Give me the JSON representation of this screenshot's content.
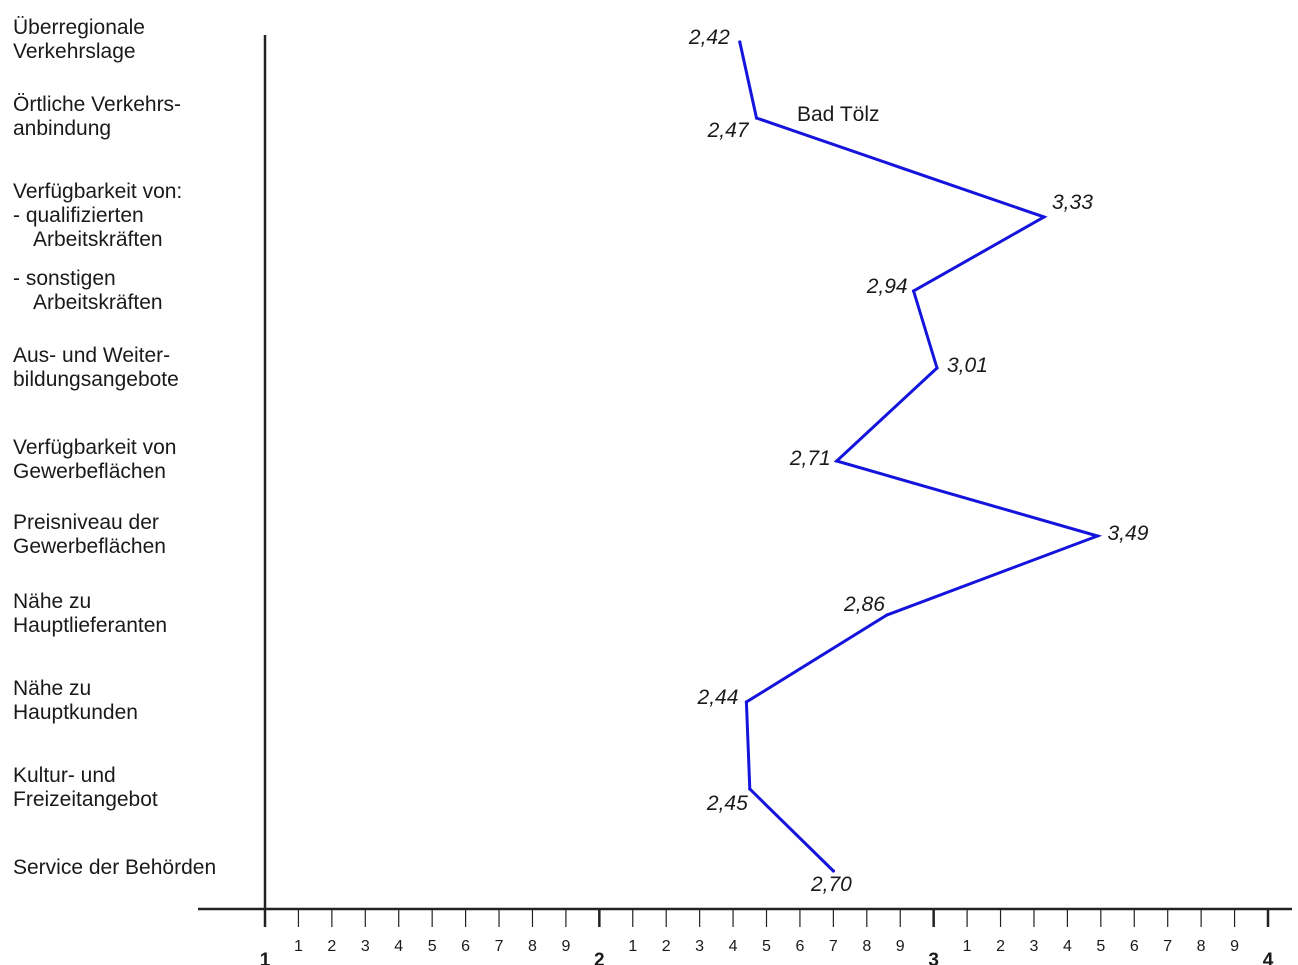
{
  "chart_data": {
    "type": "line",
    "orientation": "horizontal-values",
    "categories": [
      [
        "Überregionale",
        "Verkehrslage"
      ],
      [
        "Örtliche Verkehrs-",
        "anbindung"
      ],
      [
        "Verfügbarkeit von:",
        "- qualifizierten",
        "Arbeitskräften"
      ],
      [
        "- sonstigen",
        "Arbeitskräften"
      ],
      [
        "Aus- und Weiter-",
        "bildungsangebote"
      ],
      [
        "Verfügbarkeit von",
        "Gewerbeflächen"
      ],
      [
        "Preisniveau der",
        "Gewerbeflächen"
      ],
      [
        "Nähe zu",
        "Hauptlieferanten"
      ],
      [
        "Nähe zu",
        "Hauptkunden"
      ],
      [
        "Kultur- und",
        "Freizeitangebot"
      ],
      [
        "Service der Behörden"
      ]
    ],
    "series": [
      {
        "name": "Bad Tölz",
        "color": "#1414dc",
        "values": [
          2.42,
          2.47,
          3.33,
          2.94,
          3.01,
          2.71,
          3.49,
          2.86,
          2.44,
          2.45,
          2.7
        ],
        "value_labels": [
          "2,42",
          "2,47",
          "3,33",
          "2,94",
          "3,01",
          "2,71",
          "3,49",
          "2,86",
          "2,44",
          "2,45",
          "2,70"
        ]
      }
    ],
    "xlim": [
      1,
      4
    ],
    "major_ticks": [
      "1",
      "2",
      "3",
      "4"
    ],
    "minor_ticks": [
      "1",
      "2",
      "3",
      "4",
      "5",
      "6",
      "7",
      "8",
      "9"
    ],
    "grid": false,
    "title": "",
    "xlabel": "",
    "ylabel": ""
  }
}
